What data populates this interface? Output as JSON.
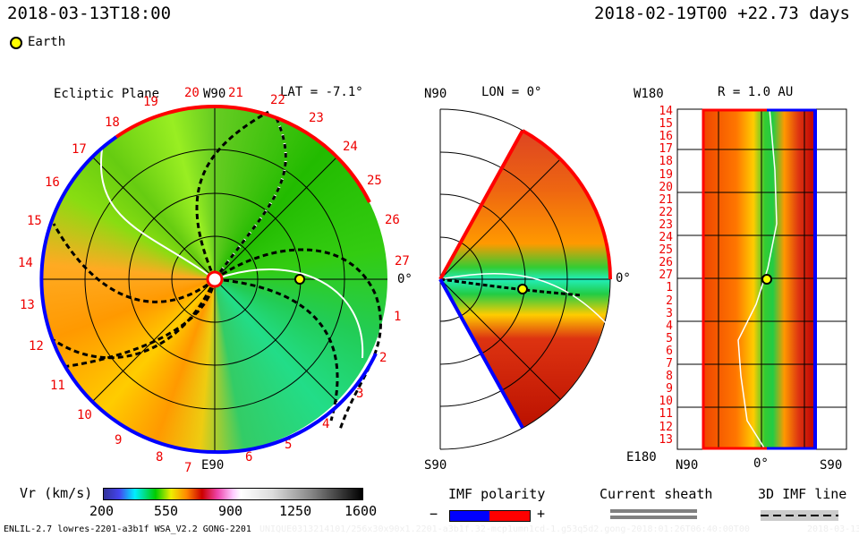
{
  "header": {
    "current_time": "2018-03-13T18:00",
    "reference": "2018-02-19T00 +22.73 days"
  },
  "legend": {
    "earth_label": "Earth"
  },
  "colors": {
    "earth": "#ffff00",
    "imf_negative": "#0000ff",
    "imf_positive": "#ff0000",
    "sheath": "#808080"
  },
  "chart_data": [
    {
      "type": "heatmap",
      "title": "Ecliptic Plane",
      "subtitle": "LAT = -7.1°",
      "axis_labels": {
        "top": "W90",
        "bottom": "E90",
        "right": "0°"
      },
      "carrington_labels": [
        "20",
        "21",
        "22",
        "23",
        "24",
        "25",
        "26",
        "27",
        "1",
        "2",
        "3",
        "4",
        "5",
        "6",
        "7",
        "8",
        "9",
        "10",
        "11",
        "12",
        "13",
        "14",
        "15",
        "16",
        "17",
        "18",
        "19"
      ],
      "earth_position": {
        "lon_deg": 0,
        "r_au": 1.0
      }
    },
    {
      "type": "heatmap",
      "title": "LON = 0°",
      "axis_labels": {
        "top": "N90",
        "bottom": "S90",
        "right": "0°"
      },
      "earth_position": {
        "lat_deg": 0,
        "r_au": 1.0
      }
    },
    {
      "type": "heatmap",
      "title": "R = 1.0 AU",
      "axis_labels": {
        "top_left": "W180",
        "bottom_left": "E180",
        "x_ticks": [
          "N90",
          "0°",
          "S90"
        ]
      },
      "y_ticks": [
        "14",
        "15",
        "16",
        "17",
        "18",
        "19",
        "20",
        "21",
        "22",
        "23",
        "24",
        "25",
        "26",
        "27",
        "1",
        "2",
        "3",
        "4",
        "5",
        "6",
        "7",
        "8",
        "9",
        "10",
        "11",
        "12",
        "13"
      ],
      "earth_position": {
        "lat_deg": 0,
        "lon_deg": 0
      }
    }
  ],
  "colorbar": {
    "label": "Vr (km/s)",
    "min": 200,
    "max": 1600,
    "ticks": [
      "200",
      "550",
      "900",
      "1250",
      "1600"
    ]
  },
  "imf": {
    "title": "IMF polarity",
    "minus": "−",
    "plus": "+"
  },
  "sheath": {
    "title": "Current sheath"
  },
  "imfline": {
    "title": "3D IMF line"
  },
  "footer": {
    "model": "ENLIL-2.7 lowres-2201-a3b1f WSA_V2.2 GONG-2201",
    "run_id": "UNIQUE0313214101/256x30x90x1.2201-a3b1f.32-mcp1umn1cd-1.g53q5d2.gong-2018:01:26T06:40:00T00",
    "date": "2018-03-13"
  }
}
